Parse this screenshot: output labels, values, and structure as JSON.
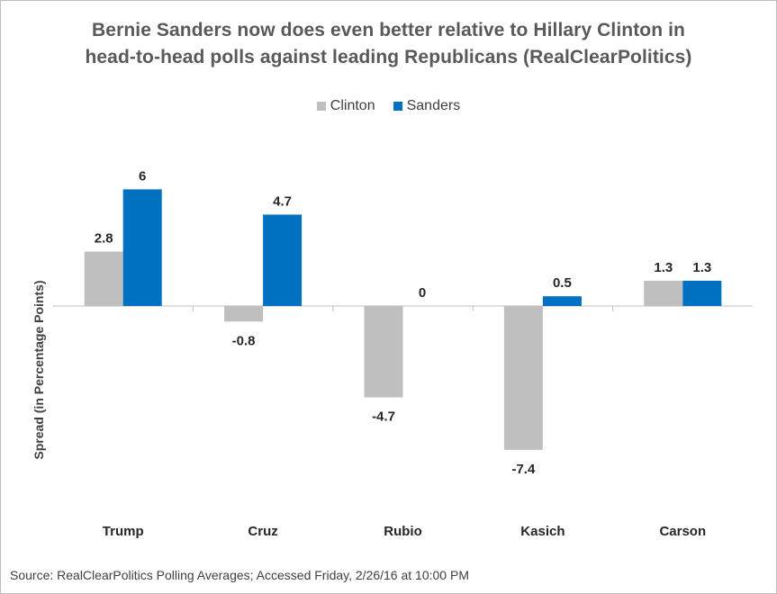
{
  "title_lines": [
    "Bernie Sanders now does even better relative to Hillary Clinton in",
    "head-to-head polls against leading Republicans (RealClearPolitics)"
  ],
  "source": "Source: RealClearPolitics Polling Averages; Accessed Friday, 2/26/16 at 10:00 PM",
  "legend": [
    {
      "label": "Clinton",
      "color": "#bfbfbf"
    },
    {
      "label": "Sanders",
      "color": "#0070c0"
    }
  ],
  "chart_data": {
    "type": "bar",
    "title": "Bernie Sanders now does even better relative to Hillary Clinton in head-to-head polls against leading Republicans (RealClearPolitics)",
    "categories": [
      "Trump",
      "Cruz",
      "Rubio",
      "Kasich",
      "Carson"
    ],
    "series": [
      {
        "name": "Clinton",
        "color": "#bfbfbf",
        "values": [
          2.8,
          -0.8,
          -4.7,
          -7.4,
          1.3
        ],
        "labels": [
          "2.8",
          "-0.8",
          "-4.7",
          "-7.4",
          "1.3"
        ]
      },
      {
        "name": "Sanders",
        "color": "#0070c0",
        "values": [
          6,
          4.7,
          0,
          0.5,
          1.3
        ],
        "labels": [
          "6",
          "4.7",
          "0",
          "0.5",
          "1.3"
        ]
      }
    ],
    "xlabel": "",
    "ylabel": "Spread (in Percentage Points)",
    "ylim": [
      -8,
      6
    ],
    "grid": false,
    "legend_position": "top-center"
  }
}
